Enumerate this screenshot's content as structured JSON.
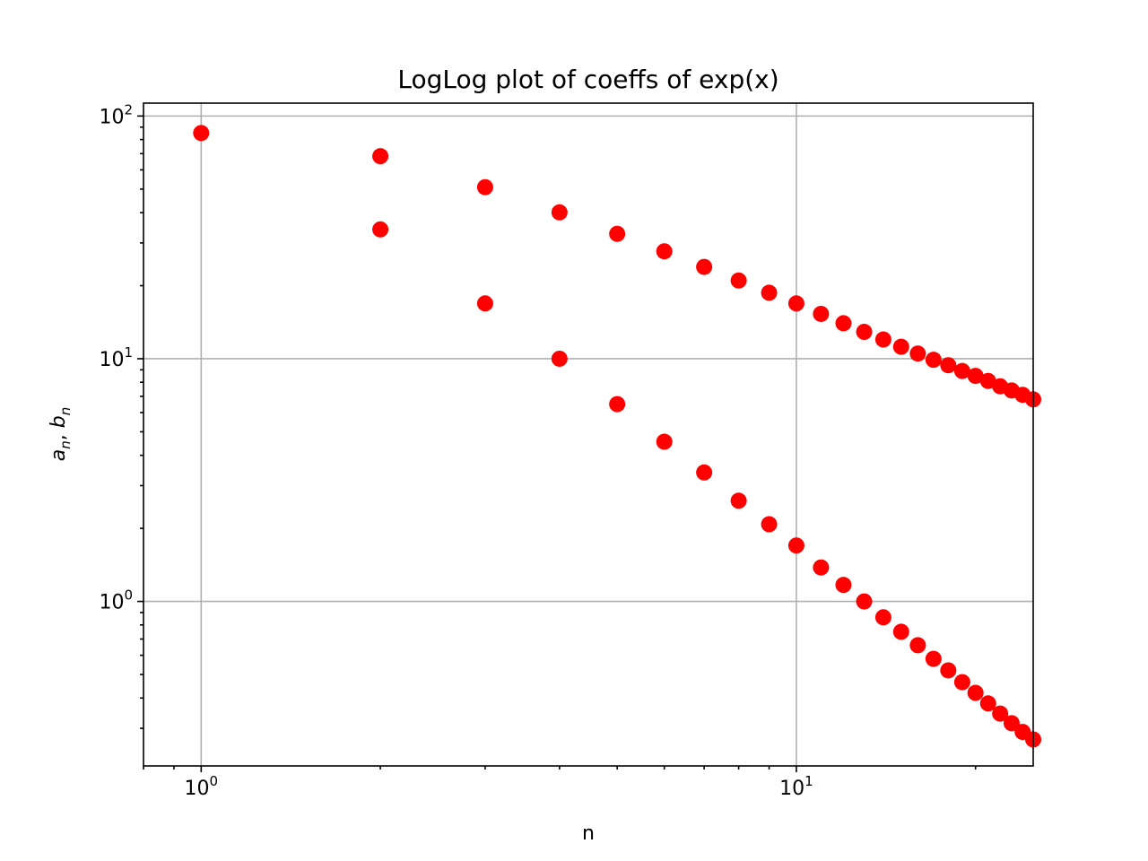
{
  "chart_data": {
    "type": "scatter",
    "title": "LogLog plot of coeffs of exp(x)",
    "xlabel": "n",
    "ylabel": {
      "a": "a",
      "a_sub": "n",
      "sep": ", ",
      "b": "b",
      "b_sub": "n"
    },
    "xscale": "log",
    "yscale": "log",
    "xlim": [
      0.8,
      25
    ],
    "ylim": [
      0.21,
      113
    ],
    "grid": true,
    "marker_color": "#ff0000",
    "x_ticks": [
      {
        "value": 1,
        "base": "10",
        "exp": "0"
      },
      {
        "value": 10,
        "base": "10",
        "exp": "1"
      }
    ],
    "y_ticks": [
      {
        "value": 1,
        "base": "10",
        "exp": "0"
      },
      {
        "value": 10,
        "base": "10",
        "exp": "1"
      },
      {
        "value": 100,
        "base": "10",
        "exp": "2"
      }
    ],
    "series": [
      {
        "x": [
          1,
          2,
          3,
          4,
          5,
          6,
          7,
          8,
          9,
          10,
          11,
          12,
          13,
          14,
          15,
          16,
          17,
          18,
          19,
          20,
          21,
          22,
          23,
          24,
          25
        ],
        "y": [
          85.1,
          68.3,
          50.9,
          40.1,
          32.7,
          27.7,
          23.9,
          21.0,
          18.7,
          16.9,
          15.3,
          14.0,
          12.9,
          12.0,
          11.2,
          10.5,
          9.9,
          9.4,
          8.9,
          8.5,
          8.1,
          7.7,
          7.4,
          7.1,
          6.8
        ]
      },
      {
        "x": [
          2,
          3,
          4,
          5,
          6,
          7,
          8,
          9,
          10,
          11,
          12,
          13,
          14,
          15,
          16,
          17,
          18,
          19,
          20,
          21,
          22,
          23,
          24,
          25
        ],
        "y": [
          34.1,
          16.9,
          10.0,
          6.5,
          4.55,
          3.4,
          2.6,
          2.08,
          1.7,
          1.38,
          1.17,
          1.0,
          0.86,
          0.75,
          0.66,
          0.58,
          0.52,
          0.465,
          0.42,
          0.38,
          0.345,
          0.315,
          0.29,
          0.27
        ]
      }
    ]
  }
}
